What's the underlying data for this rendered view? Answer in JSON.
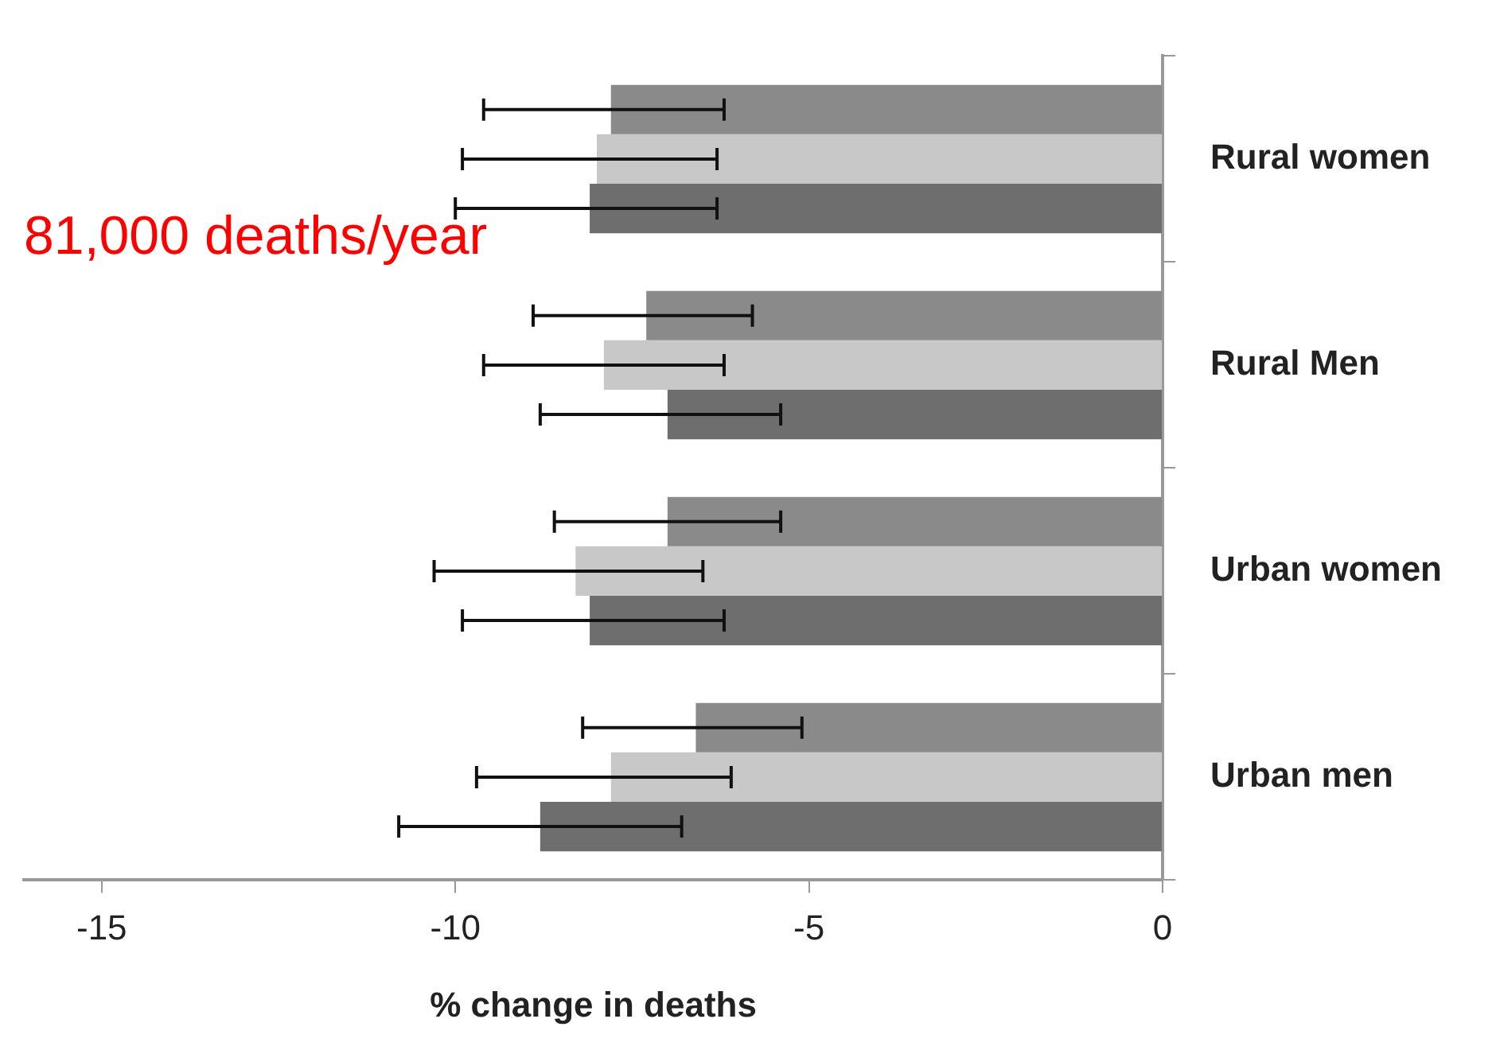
{
  "chart_data": {
    "type": "bar",
    "orientation": "horizontal",
    "xlabel": "% change in deaths",
    "categories": [
      "Rural women",
      "Rural Men",
      "Urban women",
      "Urban men"
    ],
    "series": [
      {
        "color": "#8a8a8a",
        "values": [
          -7.8,
          -7.3,
          -7.0,
          -6.6
        ],
        "errors": [
          [
            -9.6,
            -6.2
          ],
          [
            -8.9,
            -5.8
          ],
          [
            -8.6,
            -5.4
          ],
          [
            -8.2,
            -5.1
          ]
        ]
      },
      {
        "color": "#c8c8c8",
        "values": [
          -8.0,
          -7.9,
          -8.3,
          -7.8
        ],
        "errors": [
          [
            -9.9,
            -6.3
          ],
          [
            -9.6,
            -6.2
          ],
          [
            -10.3,
            -6.5
          ],
          [
            -9.7,
            -6.1
          ]
        ]
      },
      {
        "color": "#6e6e6e",
        "values": [
          -8.1,
          -7.0,
          -8.1,
          -8.8
        ],
        "errors": [
          [
            -10.0,
            -6.3
          ],
          [
            -8.8,
            -5.4
          ],
          [
            -9.9,
            -6.2
          ],
          [
            -10.8,
            -6.8
          ]
        ]
      }
    ],
    "xlim": [
      -16.1,
      0
    ],
    "xticks": [
      -15,
      -10,
      -5,
      0
    ],
    "grid": false,
    "legend": false,
    "annotations": [
      "81,000 deaths/year"
    ]
  }
}
